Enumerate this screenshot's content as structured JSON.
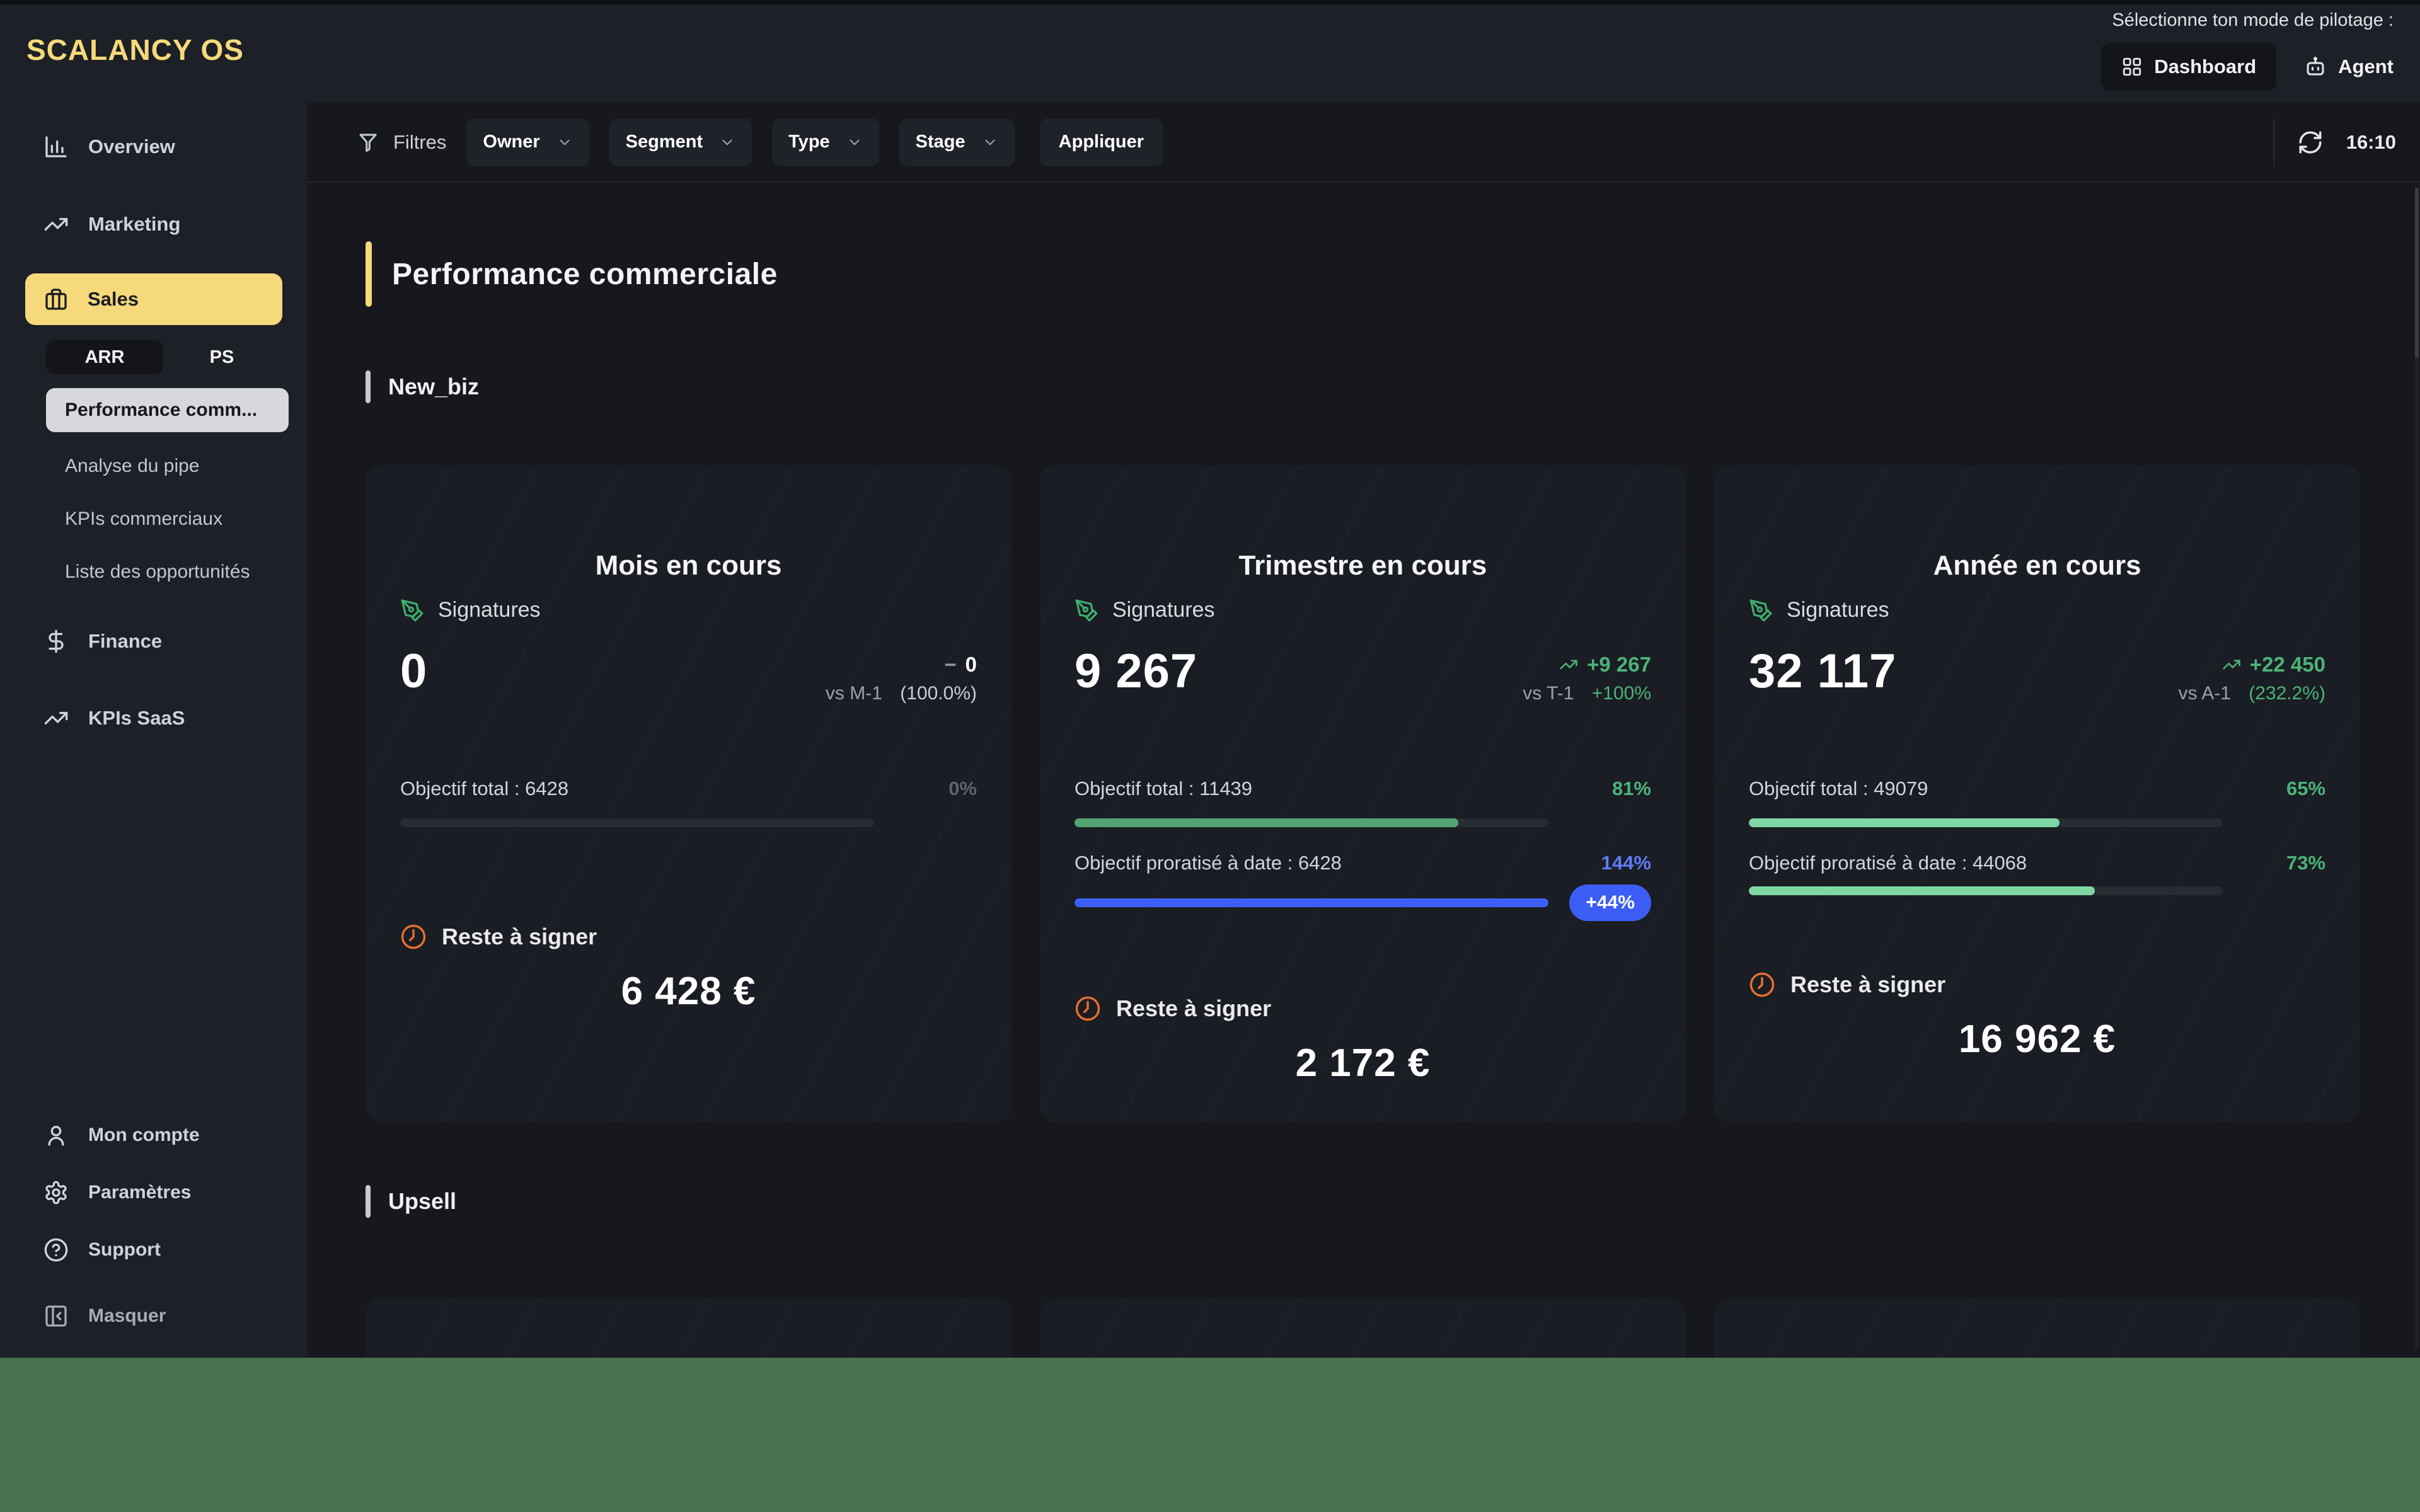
{
  "brand": {
    "logo": "SCALANCY OS"
  },
  "header": {
    "mode_label": "Sélectionne ton mode de pilotage :",
    "dashboard": "Dashboard",
    "agent": "Agent"
  },
  "sidebar": {
    "overview": "Overview",
    "marketing": "Marketing",
    "sales": "Sales",
    "tabs": {
      "arr": "ARR",
      "ps": "PS"
    },
    "sales_sub": [
      "Performance comm...",
      "Analyse du pipe",
      "KPIs commerciaux",
      "Liste des opportunités"
    ],
    "finance": "Finance",
    "kpis_saas": "KPIs SaaS",
    "account": "Mon compte",
    "settings": "Paramètres",
    "support": "Support",
    "collapse": "Masquer"
  },
  "filters": {
    "title": "Filtres",
    "dropdowns": [
      "Owner",
      "Segment",
      "Type",
      "Stage"
    ],
    "apply": "Appliquer",
    "time": "16:10"
  },
  "page": {
    "title": "Performance commerciale",
    "section_new_biz": "New_biz",
    "section_upsell": "Upsell"
  },
  "cards": [
    {
      "title": "Mois en cours",
      "metric_label": "Signatures",
      "value": "0",
      "delta_dash": "−",
      "delta_value": "0",
      "vs_label": "vs M-1",
      "vs_value": "(100.0%)",
      "objective_total_label": "Objectif total : 6428",
      "objective_total_pct": "0%",
      "objective_total_fill": 0,
      "reste_label": "Reste à signer",
      "reste_value": "6 428 €"
    },
    {
      "title": "Trimestre en cours",
      "metric_label": "Signatures",
      "value": "9 267",
      "delta_value": "+9 267",
      "vs_label": "vs T-1",
      "vs_value": "+100%",
      "objective_total_label": "Objectif total : 11439",
      "objective_total_pct": "81%",
      "objective_total_fill": 81,
      "objective_prorated_label": "Objectif proratisé à date : 6428",
      "objective_prorated_pct": "144%",
      "objective_prorated_fill": 100,
      "badge": "+44%",
      "reste_label": "Reste à signer",
      "reste_value": "2 172 €"
    },
    {
      "title": "Année en cours",
      "metric_label": "Signatures",
      "value": "32 117",
      "delta_value": "+22 450",
      "vs_label": "vs A-1",
      "vs_value": "(232.2%)",
      "objective_total_label": "Objectif total : 49079",
      "objective_total_pct": "65%",
      "objective_total_fill": 65.6,
      "objective_prorated_label": "Objectif proratisé à date : 44068",
      "objective_prorated_pct": "73%",
      "objective_prorated_fill": 73,
      "reste_label": "Reste à signer",
      "reste_value": "16 962 €"
    }
  ],
  "colors": {
    "accent_yellow": "#f5d97b",
    "positive_green": "#4cb379",
    "bar_green_medium": "#55a474",
    "bar_green_light": "#7fd7a4",
    "accent_blue": "#3c5ef6",
    "accent_blue_text": "#5f7cf8",
    "clock_orange": "#e56f2c",
    "muted_pct": "#5b6472",
    "footer_green": "#48714d"
  }
}
